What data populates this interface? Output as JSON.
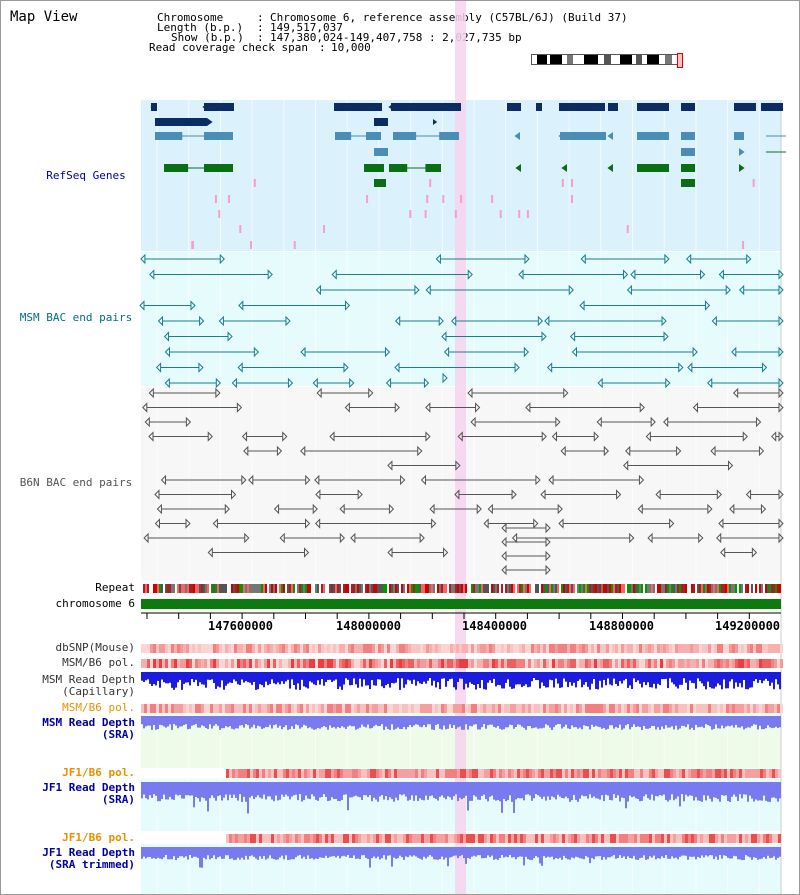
{
  "title": "Map View",
  "info": {
    "chromosome_key": "Chromosome",
    "chromosome_val": "Chromosome 6, reference assembly (C57BL/6J) (Build 37)",
    "length_key": "Length (b.p.)",
    "length_val": "149,517,037",
    "show_key": "Show (b.p.)",
    "show_val": "147,380,024-149,407,758 : 2,027,735 bp",
    "coverage_key": "Read coverage check span",
    "coverage_val": "10,000"
  },
  "tracks": {
    "refseq": "RefSeq Genes",
    "msm_bac": "MSM BAC end pairs",
    "b6n_bac": "B6N BAC end pairs",
    "repeat": "Repeat",
    "chromosome": "chromosome 6",
    "dbsnp": "dbSNP(Mouse)",
    "msm_b6_pol": "MSM/B6 pol.",
    "msm_depth_cap_1": "MSM Read Depth",
    "msm_depth_cap_2": "(Capillary)",
    "msm_b6_pol_2": "MSM/B6 pol.",
    "msm_depth_sra_1": "MSM Read Depth",
    "msm_depth_sra_2": "(SRA)",
    "jf1_b6_pol": "JF1/B6 pol.",
    "jf1_depth_sra_1": "JF1 Read Depth",
    "jf1_depth_sra_2": "(SRA)",
    "jf1_b6_pol_2": "JF1/B6 pol.",
    "jf1_depth_trim_1": "JF1 Read Depth",
    "jf1_depth_trim_2": "(SRA trimmed)"
  },
  "ruler": {
    "ticks": [
      "147600000",
      "148000000",
      "148400000",
      "148800000",
      "149200000"
    ]
  },
  "colors": {
    "refseq_bg": "#dbf1fb",
    "msm_bac_bg": "#e6fbfb",
    "b6n_bac_bg": "#f7f7f7",
    "highlight": "#f6d4ef",
    "gene_dark": "#0b2d63",
    "gene_mid": "#4a8db5",
    "gene_green": "#0a6e14",
    "msm_line": "#1a7e8e",
    "b6n_line": "#555555",
    "label_blue": "#0000a0",
    "label_teal": "#006e7e",
    "label_gray": "#555555",
    "label_orange": "#e89000",
    "chromosome_green": "#0d7a0d",
    "depth_blue": "#1c1cdc",
    "depth_light": "#7a7aef"
  }
}
